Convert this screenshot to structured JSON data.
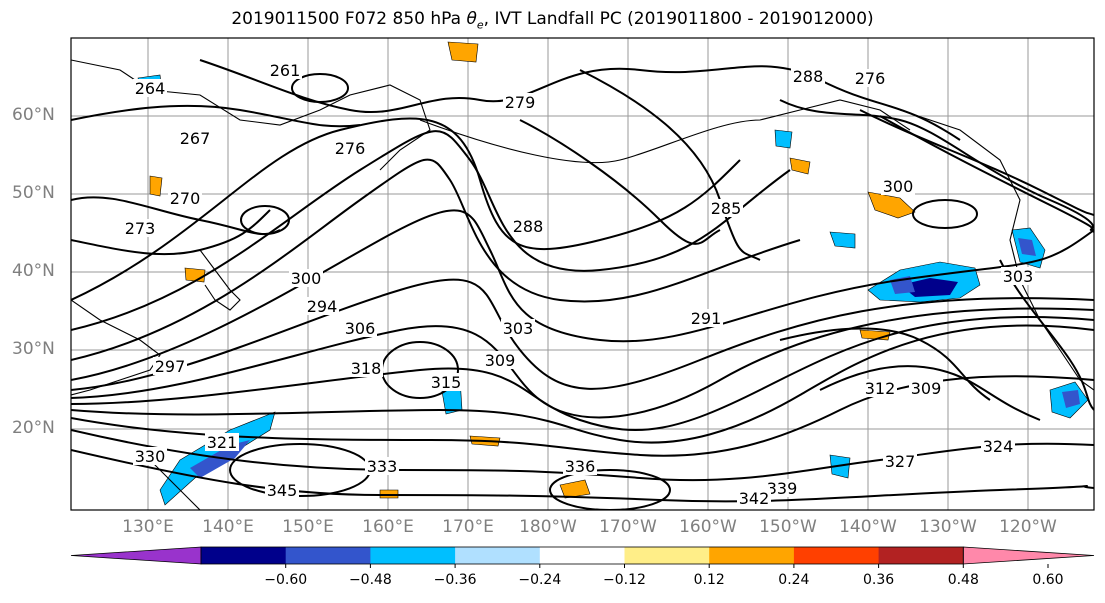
{
  "title": {
    "main": "2019011500 F072 850 hPa ",
    "theta": "θ",
    "theta_sub": "e",
    "rest": ", IVT Landfall PC (2019011800 - 2019012000)"
  },
  "latitude_labels": [
    "60°N",
    "50°N",
    "40°N",
    "30°N",
    "20°N"
  ],
  "longitude_labels": [
    "130°E",
    "140°E",
    "150°E",
    "160°E",
    "170°E",
    "180°W",
    "170°W",
    "160°W",
    "150°W",
    "140°W",
    "130°W",
    "120°W"
  ],
  "contour_labels": [
    "261",
    "264",
    "267",
    "270",
    "273",
    "276",
    "279",
    "288",
    "300",
    "285",
    "288",
    "291",
    "294",
    "297",
    "300",
    "303",
    "306",
    "309",
    "312",
    "315",
    "318",
    "321",
    "324",
    "327",
    "330",
    "333",
    "336",
    "339",
    "342",
    "345",
    "276",
    "309",
    "303"
  ],
  "colorbar": {
    "colors": [
      "#9933cc",
      "#00008b",
      "#3355cc",
      "#00bfff",
      "#b0e0ff",
      "#ffffff",
      "#ffee88",
      "#ffa500",
      "#ff4000",
      "#b22222",
      "#ff88aa"
    ],
    "tick_labels": [
      "−0.60",
      "−0.48",
      "−0.36",
      "−0.24",
      "−0.12",
      "0.12",
      "0.24",
      "0.36",
      "0.48",
      "0.60"
    ]
  }
}
